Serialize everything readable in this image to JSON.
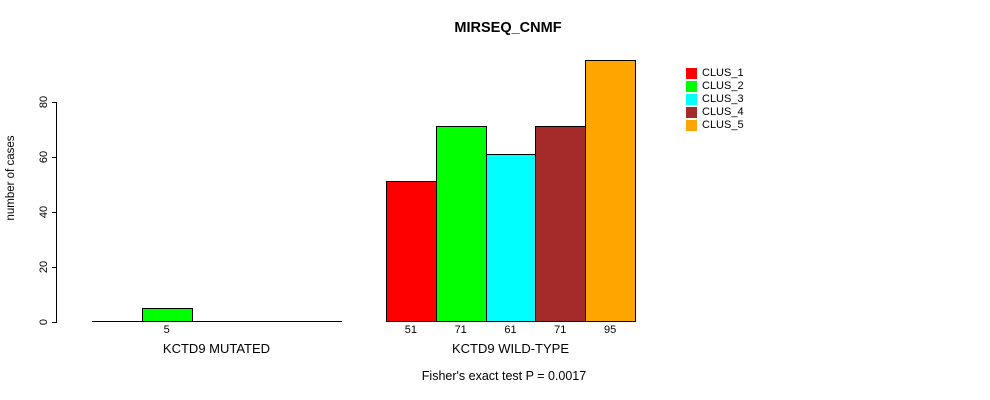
{
  "chart_data": {
    "type": "bar",
    "title": "MIRSEQ_CNMF",
    "ylabel": "number of cases",
    "xlabel": "",
    "yticks": [
      0,
      20,
      40,
      60,
      80
    ],
    "ylim": [
      0,
      95
    ],
    "grid": false,
    "legend_position": "right",
    "categories": [
      "KCTD9 MUTATED",
      "KCTD9 WILD-TYPE"
    ],
    "series": [
      {
        "name": "CLUS_1",
        "color": "#FF0000",
        "values": [
          0,
          51
        ]
      },
      {
        "name": "CLUS_2",
        "color": "#00FF00",
        "values": [
          5,
          71
        ]
      },
      {
        "name": "CLUS_3",
        "color": "#00FFFF",
        "values": [
          0,
          61
        ]
      },
      {
        "name": "CLUS_4",
        "color": "#A52A2A",
        "values": [
          0,
          71
        ]
      },
      {
        "name": "CLUS_5",
        "color": "#FFA500",
        "values": [
          0,
          95
        ]
      }
    ],
    "bar_value_labels_shown": [
      [
        "5"
      ],
      [
        "51",
        "71",
        "61",
        "71",
        "95"
      ]
    ],
    "annotation": "Fisher's exact test P = 0.0017",
    "colors": {
      "background": "#FFFFFF",
      "axis": "#000000",
      "text": "#000000"
    }
  }
}
